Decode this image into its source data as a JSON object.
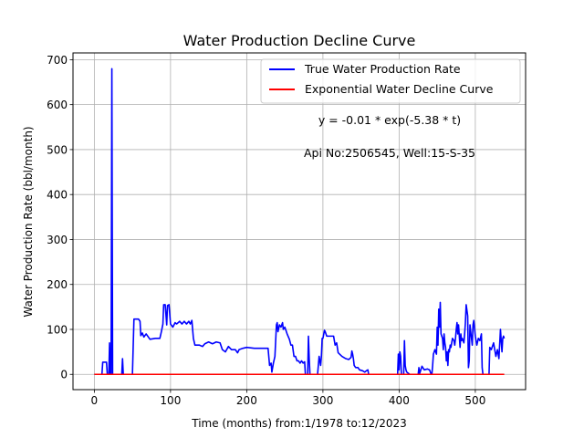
{
  "chart_data": {
    "type": "line",
    "title": "Water Production Decline Curve",
    "xlabel": "Time (months) from:1/1978 to:12/2023",
    "ylabel": "Water Production Rate (bbl/month)",
    "xlim": [
      -28,
      566
    ],
    "ylim": [
      -34,
      715
    ],
    "xticks": [
      0,
      100,
      200,
      300,
      400,
      500
    ],
    "yticks": [
      0,
      100,
      200,
      300,
      400,
      500,
      600,
      700
    ],
    "grid": true,
    "legend_position": "top-right",
    "annotations": [
      "y = -0.01 * exp(-5.38 * t)",
      "Api No:2506545, Well:15-S-35"
    ],
    "series": [
      {
        "name": "True Water Production Rate",
        "color": "#0000ff",
        "points": [
          [
            0,
            0
          ],
          [
            10,
            0
          ],
          [
            11,
            27
          ],
          [
            16,
            27
          ],
          [
            17,
            0
          ],
          [
            19,
            0
          ],
          [
            20,
            70
          ],
          [
            21,
            0
          ],
          [
            22,
            0
          ],
          [
            23,
            680
          ],
          [
            24,
            0
          ],
          [
            36,
            0
          ],
          [
            37,
            35
          ],
          [
            38,
            0
          ],
          [
            50,
            0
          ],
          [
            52,
            123
          ],
          [
            58,
            123
          ],
          [
            60,
            118
          ],
          [
            61,
            86
          ],
          [
            63,
            92
          ],
          [
            65,
            83
          ],
          [
            68,
            90
          ],
          [
            73,
            78
          ],
          [
            80,
            80
          ],
          [
            86,
            80
          ],
          [
            88,
            95
          ],
          [
            90,
            112
          ],
          [
            91,
            155
          ],
          [
            93,
            155
          ],
          [
            95,
            110
          ],
          [
            96,
            153
          ],
          [
            98,
            155
          ],
          [
            100,
            112
          ],
          [
            103,
            105
          ],
          [
            106,
            115
          ],
          [
            108,
            112
          ],
          [
            110,
            115
          ],
          [
            112,
            118
          ],
          [
            115,
            112
          ],
          [
            118,
            118
          ],
          [
            121,
            112
          ],
          [
            124,
            118
          ],
          [
            126,
            112
          ],
          [
            128,
            120
          ],
          [
            130,
            80
          ],
          [
            132,
            65
          ],
          [
            138,
            65
          ],
          [
            142,
            62
          ],
          [
            145,
            68
          ],
          [
            150,
            72
          ],
          [
            155,
            68
          ],
          [
            160,
            72
          ],
          [
            165,
            70
          ],
          [
            168,
            55
          ],
          [
            172,
            50
          ],
          [
            176,
            62
          ],
          [
            180,
            55
          ],
          [
            185,
            55
          ],
          [
            188,
            48
          ],
          [
            190,
            55
          ],
          [
            195,
            58
          ],
          [
            200,
            60
          ],
          [
            210,
            58
          ],
          [
            220,
            58
          ],
          [
            225,
            58
          ],
          [
            228,
            58
          ],
          [
            230,
            20
          ],
          [
            232,
            25
          ],
          [
            233,
            5
          ],
          [
            235,
            25
          ],
          [
            237,
            40
          ],
          [
            239,
            110
          ],
          [
            240,
            115
          ],
          [
            241,
            95
          ],
          [
            243,
            110
          ],
          [
            245,
            105
          ],
          [
            247,
            115
          ],
          [
            248,
            100
          ],
          [
            250,
            105
          ],
          [
            253,
            90
          ],
          [
            256,
            78
          ],
          [
            258,
            65
          ],
          [
            260,
            65
          ],
          [
            262,
            40
          ],
          [
            264,
            40
          ],
          [
            266,
            30
          ],
          [
            268,
            30
          ],
          [
            270,
            25
          ],
          [
            272,
            30
          ],
          [
            274,
            25
          ],
          [
            276,
            28
          ],
          [
            277,
            0
          ],
          [
            279,
            0
          ],
          [
            280,
            0
          ],
          [
            281,
            85
          ],
          [
            282,
            35
          ],
          [
            283,
            0
          ],
          [
            293,
            0
          ],
          [
            295,
            40
          ],
          [
            297,
            20
          ],
          [
            298,
            40
          ],
          [
            299,
            80
          ],
          [
            300,
            80
          ],
          [
            302,
            98
          ],
          [
            303,
            95
          ],
          [
            305,
            85
          ],
          [
            310,
            85
          ],
          [
            314,
            85
          ],
          [
            316,
            65
          ],
          [
            318,
            70
          ],
          [
            320,
            48
          ],
          [
            325,
            40
          ],
          [
            330,
            35
          ],
          [
            334,
            33
          ],
          [
            337,
            38
          ],
          [
            338,
            52
          ],
          [
            339,
            45
          ],
          [
            340,
            35
          ],
          [
            341,
            20
          ],
          [
            343,
            15
          ],
          [
            346,
            15
          ],
          [
            348,
            10
          ],
          [
            352,
            8
          ],
          [
            355,
            5
          ],
          [
            357,
            8
          ],
          [
            359,
            10
          ],
          [
            360,
            0
          ],
          [
            398,
            0
          ],
          [
            399,
            45
          ],
          [
            400,
            10
          ],
          [
            401,
            50
          ],
          [
            402,
            40
          ],
          [
            403,
            0
          ],
          [
            404,
            0
          ],
          [
            406,
            0
          ],
          [
            407,
            75
          ],
          [
            408,
            20
          ],
          [
            409,
            10
          ],
          [
            410,
            5
          ],
          [
            414,
            0
          ],
          [
            425,
            0
          ],
          [
            426,
            15
          ],
          [
            427,
            2
          ],
          [
            430,
            18
          ],
          [
            433,
            10
          ],
          [
            437,
            12
          ],
          [
            440,
            10
          ],
          [
            442,
            0
          ],
          [
            443,
            0
          ],
          [
            444,
            20
          ],
          [
            445,
            45
          ],
          [
            447,
            55
          ],
          [
            449,
            45
          ],
          [
            450,
            105
          ],
          [
            451,
            65
          ],
          [
            452,
            145
          ],
          [
            453,
            105
          ],
          [
            454,
            160
          ],
          [
            455,
            90
          ],
          [
            457,
            80
          ],
          [
            458,
            55
          ],
          [
            459,
            90
          ],
          [
            460,
            70
          ],
          [
            461,
            60
          ],
          [
            462,
            30
          ],
          [
            463,
            50
          ],
          [
            464,
            20
          ],
          [
            465,
            55
          ],
          [
            466,
            50
          ],
          [
            467,
            65
          ],
          [
            468,
            60
          ],
          [
            470,
            80
          ],
          [
            472,
            75
          ],
          [
            473,
            65
          ],
          [
            474,
            80
          ],
          [
            475,
            100
          ],
          [
            476,
            115
          ],
          [
            477,
            90
          ],
          [
            478,
            110
          ],
          [
            480,
            60
          ],
          [
            481,
            90
          ],
          [
            482,
            75
          ],
          [
            483,
            80
          ],
          [
            485,
            70
          ],
          [
            486,
            90
          ],
          [
            487,
            115
          ],
          [
            488,
            155
          ],
          [
            490,
            130
          ],
          [
            491,
            15
          ],
          [
            492,
            30
          ],
          [
            493,
            110
          ],
          [
            495,
            80
          ],
          [
            496,
            65
          ],
          [
            497,
            110
          ],
          [
            498,
            120
          ],
          [
            500,
            85
          ],
          [
            502,
            65
          ],
          [
            504,
            80
          ],
          [
            506,
            75
          ],
          [
            508,
            90
          ],
          [
            509,
            15
          ],
          [
            510,
            0
          ],
          [
            516,
            0
          ],
          [
            518,
            0
          ],
          [
            519,
            60
          ],
          [
            521,
            55
          ],
          [
            524,
            70
          ],
          [
            525,
            60
          ],
          [
            527,
            40
          ],
          [
            529,
            55
          ],
          [
            531,
            35
          ],
          [
            533,
            100
          ],
          [
            535,
            50
          ],
          [
            536,
            80
          ],
          [
            537,
            85
          ],
          [
            538,
            80
          ]
        ]
      },
      {
        "name": "Exponential Water Decline Curve",
        "color": "#ff0000",
        "points": [
          [
            0,
            0
          ],
          [
            538,
            0
          ]
        ]
      }
    ]
  }
}
